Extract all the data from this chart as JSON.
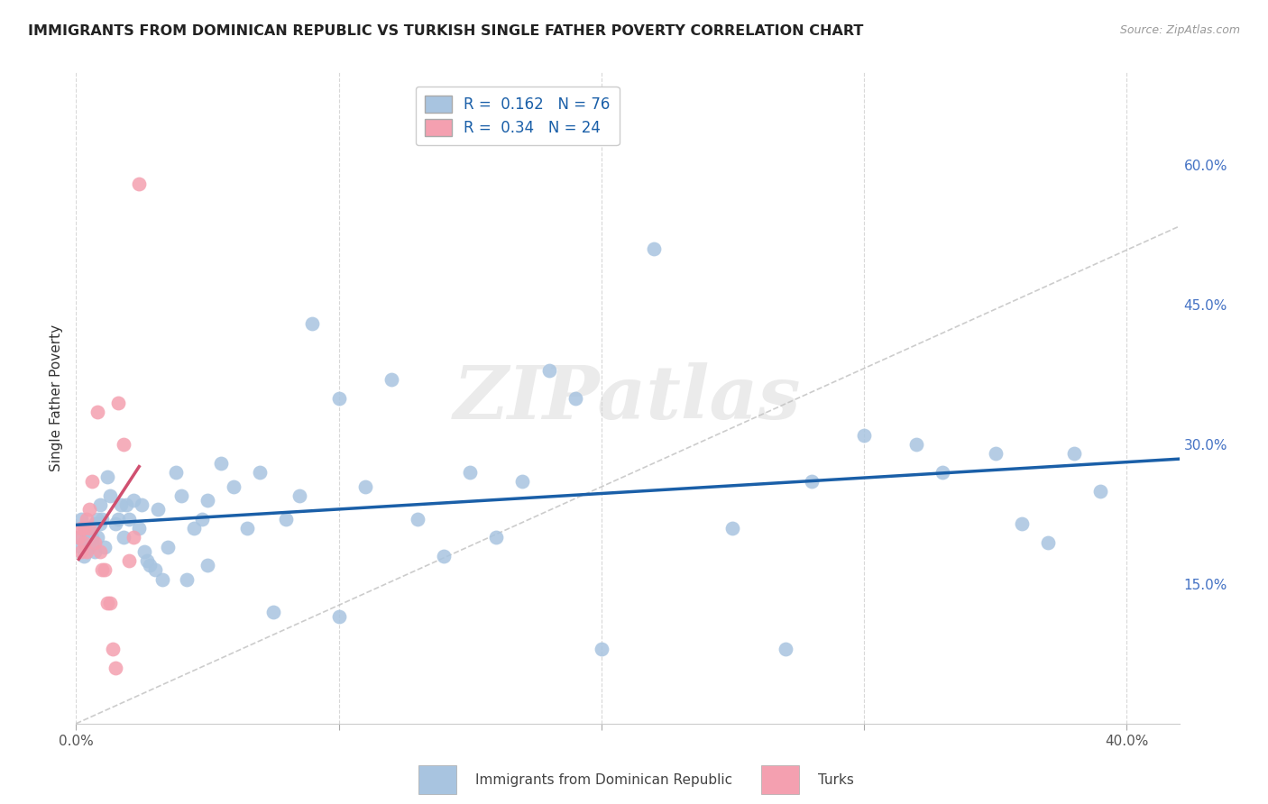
{
  "title": "IMMIGRANTS FROM DOMINICAN REPUBLIC VS TURKISH SINGLE FATHER POVERTY CORRELATION CHART",
  "source": "Source: ZipAtlas.com",
  "ylabel": "Single Father Poverty",
  "xlim": [
    0.0,
    0.42
  ],
  "ylim": [
    0.0,
    0.7
  ],
  "r_blue": 0.162,
  "n_blue": 76,
  "r_pink": 0.34,
  "n_pink": 24,
  "blue_color": "#a8c4e0",
  "pink_color": "#f4a0b0",
  "line_blue": "#1a5fa8",
  "line_pink": "#d05070",
  "line_diag": "#c0c0c0",
  "legend_label_blue": "Immigrants from Dominican Republic",
  "legend_label_pink": "Turks",
  "watermark": "ZIPatlas",
  "blue_x": [
    0.001,
    0.002,
    0.002,
    0.003,
    0.003,
    0.004,
    0.004,
    0.005,
    0.005,
    0.006,
    0.006,
    0.007,
    0.007,
    0.008,
    0.008,
    0.009,
    0.009,
    0.01,
    0.011,
    0.012,
    0.013,
    0.015,
    0.016,
    0.017,
    0.018,
    0.019,
    0.02,
    0.022,
    0.024,
    0.025,
    0.026,
    0.027,
    0.028,
    0.03,
    0.031,
    0.033,
    0.035,
    0.038,
    0.04,
    0.042,
    0.045,
    0.048,
    0.05,
    0.055,
    0.06,
    0.065,
    0.07,
    0.075,
    0.08,
    0.085,
    0.09,
    0.1,
    0.11,
    0.12,
    0.13,
    0.14,
    0.15,
    0.16,
    0.17,
    0.18,
    0.19,
    0.2,
    0.22,
    0.25,
    0.27,
    0.28,
    0.3,
    0.32,
    0.33,
    0.35,
    0.36,
    0.37,
    0.38,
    0.39,
    0.05,
    0.1
  ],
  "blue_y": [
    0.2,
    0.22,
    0.19,
    0.21,
    0.18,
    0.2,
    0.195,
    0.19,
    0.21,
    0.2,
    0.195,
    0.185,
    0.215,
    0.2,
    0.22,
    0.235,
    0.215,
    0.22,
    0.19,
    0.265,
    0.245,
    0.215,
    0.22,
    0.235,
    0.2,
    0.235,
    0.22,
    0.24,
    0.21,
    0.235,
    0.185,
    0.175,
    0.17,
    0.165,
    0.23,
    0.155,
    0.19,
    0.27,
    0.245,
    0.155,
    0.21,
    0.22,
    0.24,
    0.28,
    0.255,
    0.21,
    0.27,
    0.12,
    0.22,
    0.245,
    0.43,
    0.35,
    0.255,
    0.37,
    0.22,
    0.18,
    0.27,
    0.2,
    0.26,
    0.38,
    0.35,
    0.08,
    0.51,
    0.21,
    0.08,
    0.26,
    0.31,
    0.3,
    0.27,
    0.29,
    0.215,
    0.195,
    0.29,
    0.25,
    0.17,
    0.115
  ],
  "pink_x": [
    0.001,
    0.002,
    0.002,
    0.003,
    0.003,
    0.004,
    0.004,
    0.005,
    0.005,
    0.006,
    0.007,
    0.008,
    0.009,
    0.01,
    0.011,
    0.012,
    0.013,
    0.014,
    0.015,
    0.016,
    0.018,
    0.02,
    0.022,
    0.024
  ],
  "pink_y": [
    0.2,
    0.21,
    0.185,
    0.21,
    0.195,
    0.22,
    0.185,
    0.23,
    0.21,
    0.26,
    0.195,
    0.335,
    0.185,
    0.165,
    0.165,
    0.13,
    0.13,
    0.08,
    0.06,
    0.345,
    0.3,
    0.175,
    0.2,
    0.58
  ]
}
